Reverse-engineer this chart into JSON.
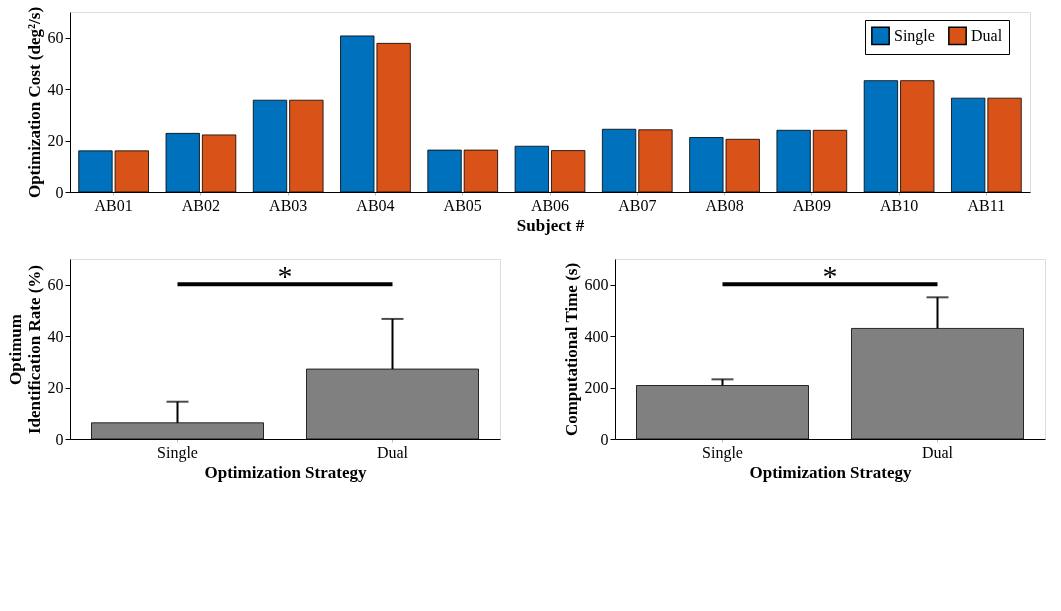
{
  "chart_data": [
    {
      "type": "bar",
      "xlabel": "Subject #",
      "ylabel": "Optimization Cost (deg²/s)",
      "categories": [
        "AB01",
        "AB02",
        "AB03",
        "AB04",
        "AB05",
        "AB06",
        "AB07",
        "AB08",
        "AB09",
        "AB10",
        "AB11"
      ],
      "series": [
        {
          "name": "Single",
          "color": "#0072bd",
          "values": [
            16.0,
            22.8,
            35.7,
            60.7,
            16.3,
            17.8,
            24.4,
            21.2,
            24.0,
            43.3,
            36.5
          ]
        },
        {
          "name": "Dual",
          "color": "#d95319",
          "values": [
            16.0,
            22.2,
            35.7,
            57.8,
            16.3,
            16.1,
            24.2,
            20.5,
            24.0,
            43.3,
            36.5
          ]
        }
      ],
      "ylim": [
        0,
        70
      ],
      "yticks": [
        0,
        20,
        40,
        60
      ],
      "legend": "top right",
      "grid": false
    },
    {
      "type": "bar",
      "xlabel": "Optimization Strategy",
      "ylabel": "Optimum\nIdentification Rate (%)",
      "categories": [
        "Single",
        "Dual"
      ],
      "values": [
        6.3,
        27.2
      ],
      "color": "#808080",
      "errors": [
        [
          6.3,
          14.5
        ],
        [
          27.2,
          46.7
        ]
      ],
      "ylim": [
        0,
        70
      ],
      "yticks": [
        0,
        20,
        40,
        60
      ],
      "annotations": [
        "*"
      ],
      "grid": false
    },
    {
      "type": "bar",
      "xlabel": "Optimization Strategy",
      "ylabel": "Computational Time (s)",
      "categories": [
        "Single",
        "Dual"
      ],
      "values": [
        208,
        430
      ],
      "color": "#808080",
      "errors": [
        [
          208,
          232
        ],
        [
          430,
          551
        ]
      ],
      "ylim": [
        0,
        700
      ],
      "yticks": [
        0,
        200,
        400,
        600
      ],
      "annotations": [
        "*"
      ],
      "grid": false
    }
  ]
}
